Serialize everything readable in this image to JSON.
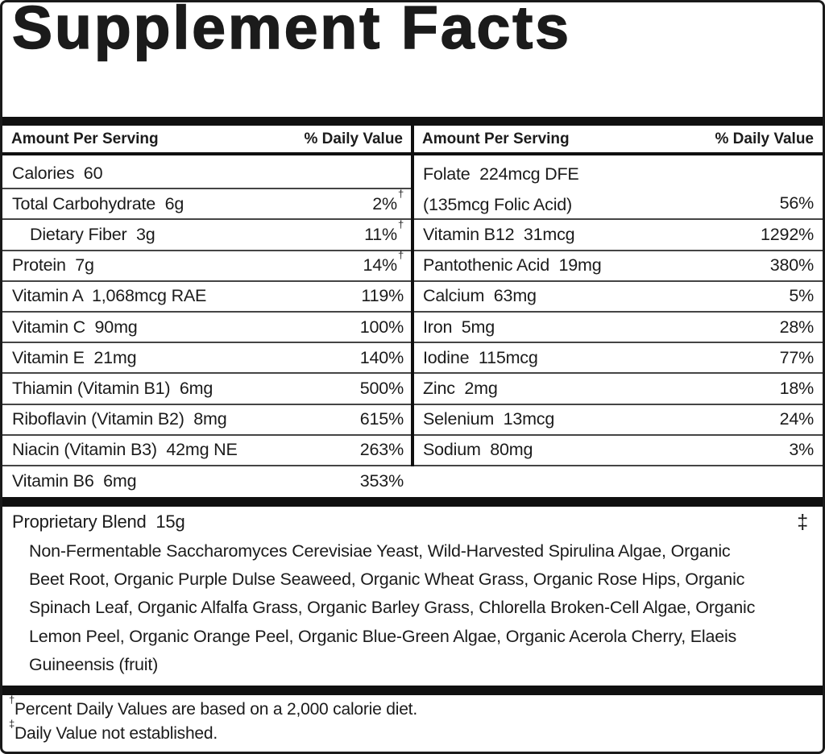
{
  "label": {
    "title": "Supplement Facts",
    "headers": {
      "amount": "Amount Per Serving",
      "daily_value": "% Daily Value"
    },
    "dagger_mark": "†",
    "double_dagger_mark": "‡",
    "table": {
      "left": [
        {
          "label": "Calories  60",
          "dv": "",
          "dagger": false,
          "indent": false
        },
        {
          "label": "Total Carbohydrate  6g",
          "dv": "2%",
          "dagger": true,
          "indent": false
        },
        {
          "label": "Dietary Fiber  3g",
          "dv": "11%",
          "dagger": true,
          "indent": true
        },
        {
          "label": "Protein  7g",
          "dv": "14%",
          "dagger": true,
          "indent": false
        },
        {
          "label": "Vitamin A  1,068mcg RAE",
          "dv": "119%",
          "dagger": false,
          "indent": false
        },
        {
          "label": "Vitamin C  90mg",
          "dv": "100%",
          "dagger": false,
          "indent": false
        },
        {
          "label": "Vitamin E  21mg",
          "dv": "140%",
          "dagger": false,
          "indent": false
        },
        {
          "label": "Thiamin (Vitamin B1)  6mg",
          "dv": "500%",
          "dagger": false,
          "indent": false
        },
        {
          "label": "Riboflavin (Vitamin B2)  8mg",
          "dv": "615%",
          "dagger": false,
          "indent": false
        },
        {
          "label": "Niacin (Vitamin B3)  42mg NE",
          "dv": "263%",
          "dagger": false,
          "indent": false
        },
        {
          "label": "Vitamin B6  6mg",
          "dv": "353%",
          "dagger": false,
          "indent": false
        }
      ],
      "right": [
        {
          "lines": [
            "Folate  224mcg DFE",
            "(135mcg Folic Acid)"
          ],
          "dv": "56%",
          "dagger": false
        },
        {
          "label": "Vitamin B12  31mcg",
          "dv": "1292%",
          "dagger": false
        },
        {
          "label": "Pantothenic Acid  19mg",
          "dv": "380%",
          "dagger": false
        },
        {
          "label": "Calcium  63mg",
          "dv": "5%",
          "dagger": false
        },
        {
          "label": "Iron  5mg",
          "dv": "28%",
          "dagger": false
        },
        {
          "label": "Iodine  115mcg",
          "dv": "77%",
          "dagger": false
        },
        {
          "label": "Zinc  2mg",
          "dv": "18%",
          "dagger": false
        },
        {
          "label": "Selenium  13mcg",
          "dv": "24%",
          "dagger": false
        },
        {
          "label": "Sodium  80mg",
          "dv": "3%",
          "dagger": false
        }
      ]
    },
    "proprietary_blend": {
      "title": "Proprietary Blend  15g",
      "mark": "‡",
      "ingredient_lines": [
        "Non-Fermentable Saccharomyces Cerevisiae Yeast, Wild-Harvested Spirulina Algae, Organic",
        "Beet Root, Organic Purple Dulse Seaweed, Organic Wheat Grass, Organic Rose Hips, Organic",
        "Spinach Leaf, Organic Alfalfa Grass, Organic Barley Grass, Chlorella Broken-Cell Algae, Organic",
        "Lemon Peel, Organic Orange Peel, Organic Blue-Green Algae, Organic Acerola Cherry, Elaeis",
        "Guineensis (fruit)"
      ]
    },
    "footnotes": [
      {
        "mark": "†",
        "text": "Percent Daily Values are based on a 2,000 calorie diet."
      },
      {
        "mark": "‡",
        "text": "Daily Value not established."
      }
    ],
    "colors": {
      "text": "#1b1b1b",
      "bar": "#101010",
      "row_line": "#454545",
      "border": "#1a1a1a",
      "background": "#ffffff"
    }
  }
}
